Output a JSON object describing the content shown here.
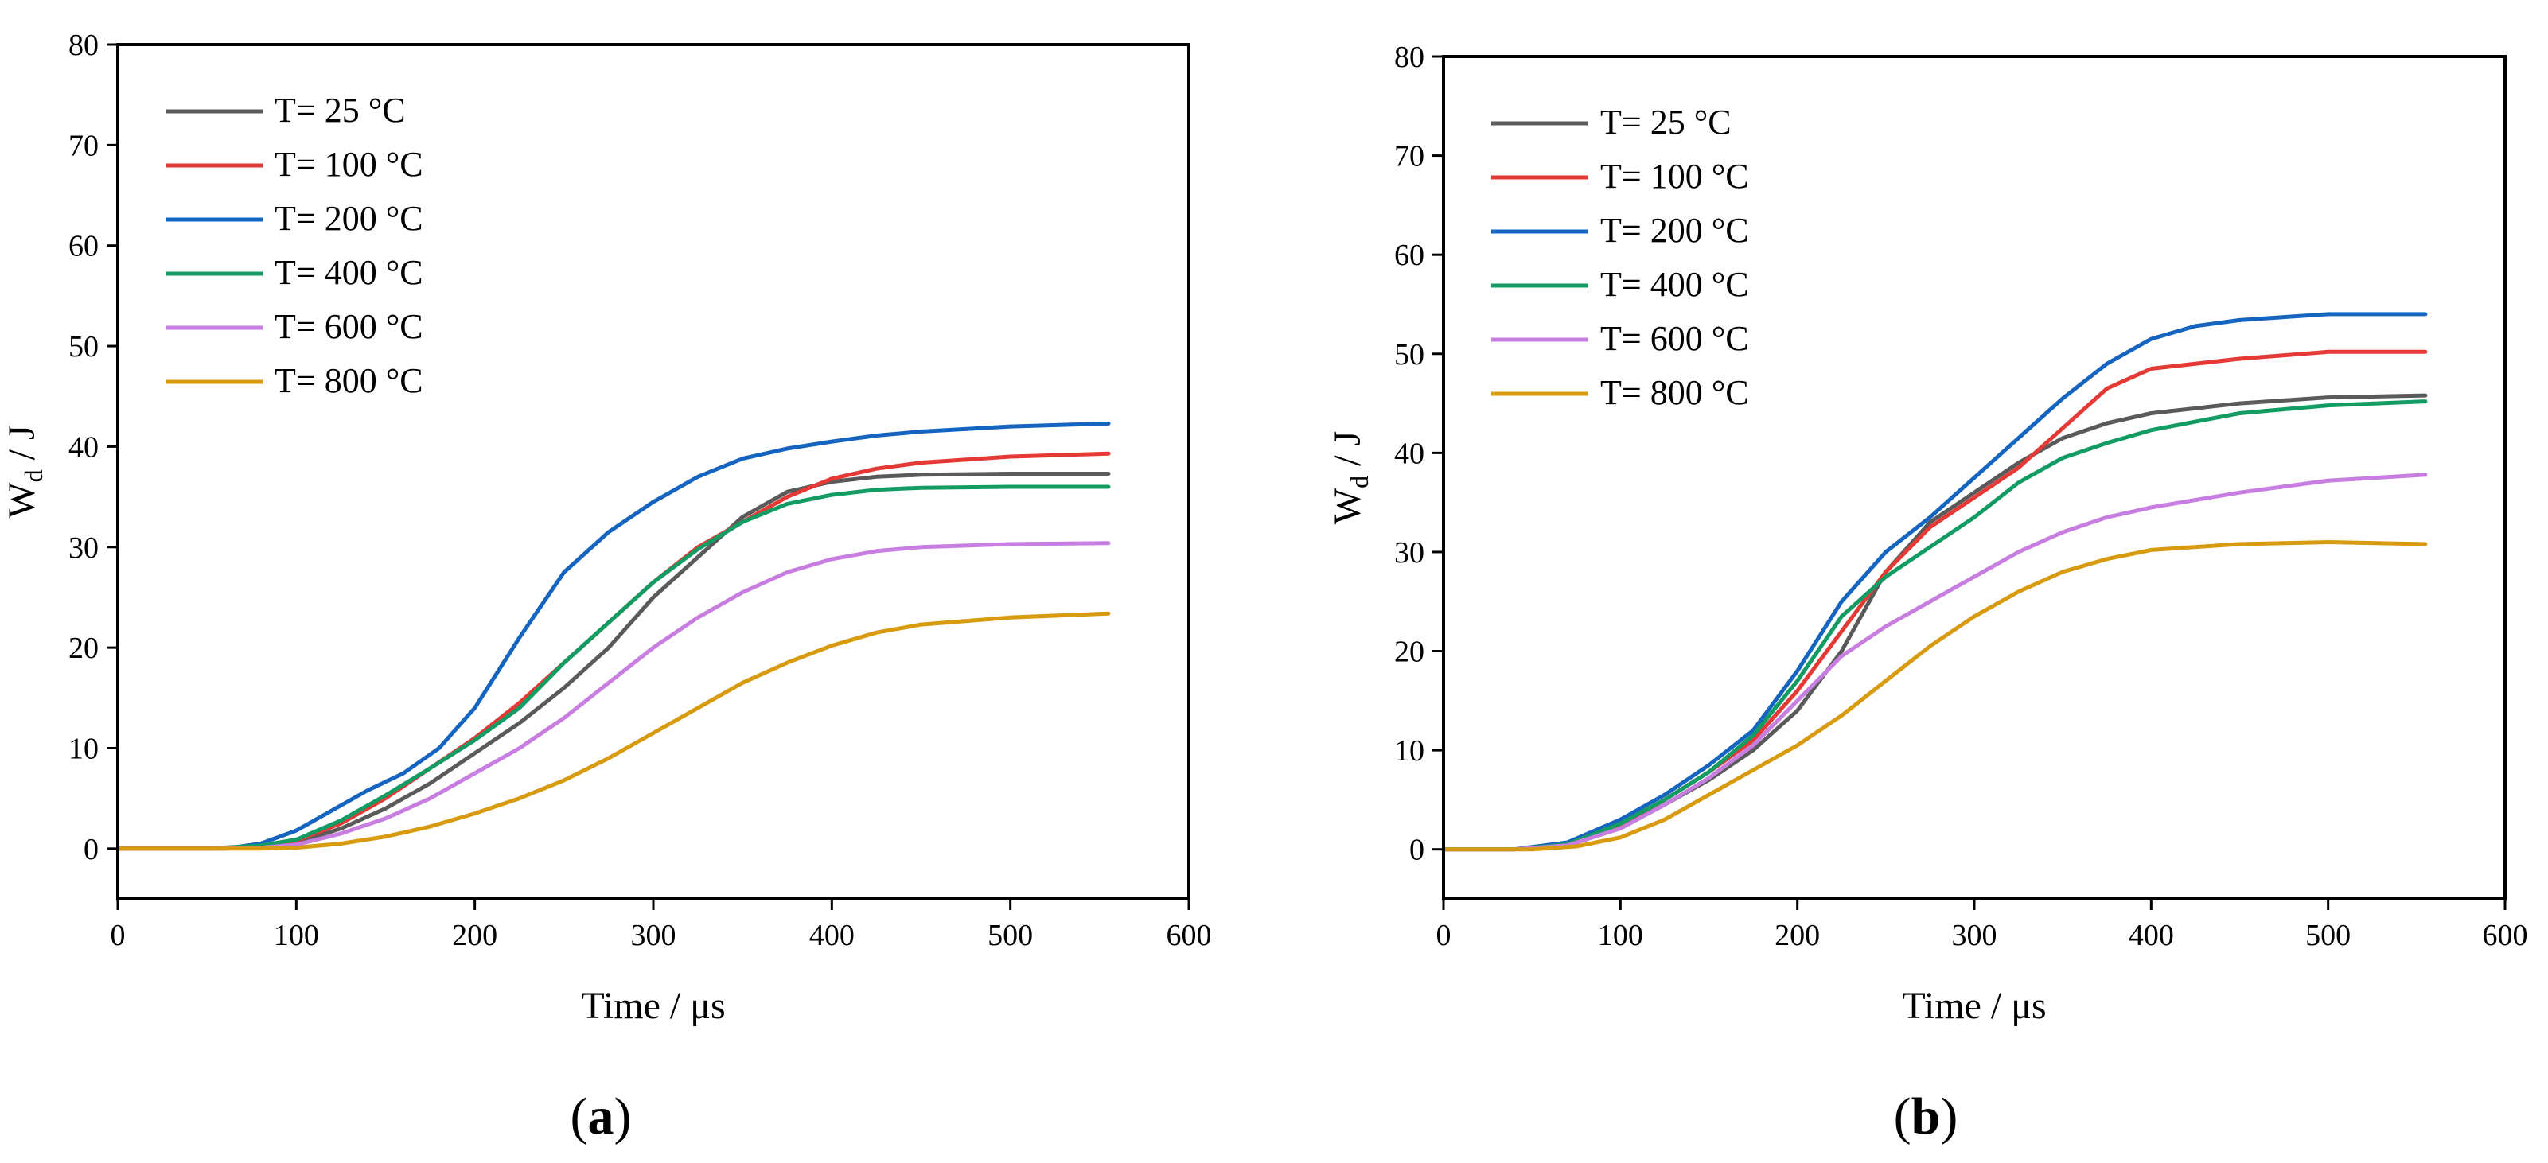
{
  "chart_data": [
    {
      "type": "line",
      "panel_label": "a",
      "xlabel": "Time / μs",
      "ylabel_main": "W",
      "ylabel_sub": "d",
      "ylabel_unit": " / J",
      "xlim": [
        0,
        600
      ],
      "ylim": [
        -5,
        80
      ],
      "xticks": [
        0,
        100,
        200,
        300,
        400,
        500,
        600
      ],
      "yticks": [
        0,
        10,
        20,
        30,
        40,
        50,
        60,
        70,
        80
      ],
      "legend_position": "top-left",
      "grid": false,
      "series": [
        {
          "name": "T= 25 °C",
          "color": "#5a5a5a",
          "x": [
            0,
            50,
            80,
            100,
            125,
            150,
            175,
            200,
            225,
            250,
            275,
            300,
            325,
            350,
            375,
            400,
            425,
            450,
            500,
            555
          ],
          "y": [
            0,
            0,
            0.2,
            0.6,
            2,
            4,
            6.5,
            9.5,
            12.5,
            16,
            20,
            25,
            29,
            33,
            35.5,
            36.5,
            37,
            37.2,
            37.3,
            37.3
          ]
        },
        {
          "name": "T= 100 °C",
          "color": "#e53935",
          "x": [
            0,
            50,
            80,
            100,
            125,
            150,
            175,
            200,
            225,
            250,
            275,
            300,
            325,
            350,
            375,
            400,
            425,
            450,
            500,
            555
          ],
          "y": [
            0,
            0,
            0.3,
            0.8,
            2.5,
            5,
            8,
            11,
            14.5,
            18.5,
            22.5,
            26.5,
            30,
            32.5,
            35,
            36.8,
            37.8,
            38.4,
            39,
            39.3
          ]
        },
        {
          "name": "T= 200 °C",
          "color": "#1565c0",
          "x": [
            0,
            60,
            80,
            100,
            120,
            140,
            160,
            180,
            200,
            225,
            250,
            275,
            300,
            325,
            350,
            375,
            400,
            425,
            450,
            500,
            555
          ],
          "y": [
            0,
            0,
            0.5,
            1.8,
            3.8,
            5.8,
            7.5,
            10,
            14,
            21,
            27.5,
            31.5,
            34.5,
            37,
            38.8,
            39.8,
            40.5,
            41.1,
            41.5,
            42,
            42.3
          ]
        },
        {
          "name": "T= 400 °C",
          "color": "#129c63",
          "x": [
            0,
            50,
            80,
            100,
            125,
            150,
            175,
            200,
            225,
            250,
            275,
            300,
            325,
            350,
            375,
            400,
            425,
            450,
            500,
            555
          ],
          "y": [
            0,
            0,
            0.3,
            0.9,
            2.8,
            5.3,
            8,
            10.8,
            14,
            18.5,
            22.5,
            26.5,
            29.8,
            32.5,
            34.3,
            35.2,
            35.7,
            35.9,
            36,
            36
          ]
        },
        {
          "name": "T= 600 °C",
          "color": "#c77ee0",
          "x": [
            0,
            50,
            80,
            100,
            125,
            150,
            175,
            200,
            225,
            250,
            275,
            300,
            325,
            350,
            375,
            400,
            425,
            450,
            500,
            555
          ],
          "y": [
            0,
            0,
            0.1,
            0.4,
            1.5,
            3,
            5,
            7.5,
            10,
            13,
            16.5,
            20,
            23,
            25.5,
            27.5,
            28.8,
            29.6,
            30,
            30.3,
            30.4
          ]
        },
        {
          "name": "T= 800 °C",
          "color": "#d89a0e",
          "x": [
            0,
            80,
            100,
            125,
            150,
            175,
            200,
            225,
            250,
            275,
            300,
            325,
            350,
            375,
            400,
            425,
            450,
            500,
            555
          ],
          "y": [
            0,
            0,
            0.1,
            0.5,
            1.2,
            2.2,
            3.5,
            5,
            6.8,
            9,
            11.5,
            14,
            16.5,
            18.5,
            20.2,
            21.5,
            22.3,
            23,
            23.4
          ]
        }
      ]
    },
    {
      "type": "line",
      "panel_label": "b",
      "xlabel": "Time / μs",
      "ylabel_main": "W",
      "ylabel_sub": "d",
      "ylabel_unit": " / J",
      "xlim": [
        0,
        600
      ],
      "ylim": [
        -5,
        80
      ],
      "xticks": [
        0,
        100,
        200,
        300,
        400,
        500,
        600
      ],
      "yticks": [
        0,
        10,
        20,
        30,
        40,
        50,
        60,
        70,
        80
      ],
      "legend_position": "top-left",
      "grid": false,
      "series": [
        {
          "name": "T= 25 °C",
          "color": "#5a5a5a",
          "x": [
            0,
            40,
            70,
            100,
            125,
            150,
            175,
            200,
            225,
            250,
            275,
            300,
            325,
            350,
            375,
            400,
            450,
            500,
            555
          ],
          "y": [
            0,
            0,
            0.4,
            2.2,
            4.5,
            7,
            10,
            14,
            20,
            28,
            33,
            36,
            39,
            41.5,
            43,
            44,
            45,
            45.6,
            45.8
          ]
        },
        {
          "name": "T= 100 °C",
          "color": "#e53935",
          "x": [
            0,
            40,
            70,
            100,
            125,
            150,
            175,
            200,
            225,
            250,
            275,
            300,
            325,
            350,
            375,
            400,
            450,
            500,
            555
          ],
          "y": [
            0,
            0,
            0.5,
            2.5,
            5,
            7.8,
            11,
            16,
            22,
            28,
            32.5,
            35.5,
            38.5,
            42.5,
            46.5,
            48.5,
            49.5,
            50.2,
            50.2
          ]
        },
        {
          "name": "T= 200 °C",
          "color": "#1565c0",
          "x": [
            0,
            40,
            70,
            100,
            125,
            150,
            175,
            200,
            225,
            250,
            275,
            300,
            325,
            350,
            375,
            400,
            425,
            450,
            500,
            555
          ],
          "y": [
            0,
            0,
            0.7,
            3,
            5.5,
            8.5,
            12,
            18,
            25,
            30,
            33.5,
            37.5,
            41.5,
            45.5,
            49,
            51.5,
            52.8,
            53.4,
            54,
            54
          ]
        },
        {
          "name": "T= 400 °C",
          "color": "#129c63",
          "x": [
            0,
            40,
            70,
            100,
            125,
            150,
            175,
            200,
            225,
            250,
            275,
            300,
            325,
            350,
            375,
            400,
            450,
            500,
            555
          ],
          "y": [
            0,
            0,
            0.5,
            2.6,
            5,
            7.8,
            11.5,
            17,
            23.5,
            27.5,
            30.5,
            33.5,
            37,
            39.5,
            41,
            42.3,
            44,
            44.8,
            45.2
          ]
        },
        {
          "name": "T= 600 °C",
          "color": "#c77ee0",
          "x": [
            0,
            40,
            70,
            100,
            125,
            150,
            175,
            200,
            225,
            250,
            275,
            300,
            325,
            350,
            375,
            400,
            450,
            500,
            555
          ],
          "y": [
            0,
            0,
            0.4,
            2.1,
            4.5,
            7.2,
            10.5,
            15,
            19.5,
            22.5,
            25,
            27.5,
            30,
            32,
            33.5,
            34.5,
            36,
            37.2,
            37.8
          ]
        },
        {
          "name": "T= 800 °C",
          "color": "#d89a0e",
          "x": [
            0,
            50,
            75,
            100,
            125,
            150,
            175,
            200,
            225,
            250,
            275,
            300,
            325,
            350,
            375,
            400,
            450,
            500,
            555
          ],
          "y": [
            0,
            0,
            0.3,
            1.2,
            3,
            5.5,
            8,
            10.5,
            13.5,
            17,
            20.5,
            23.5,
            26,
            28,
            29.3,
            30.2,
            30.8,
            31,
            30.8
          ]
        }
      ]
    }
  ]
}
